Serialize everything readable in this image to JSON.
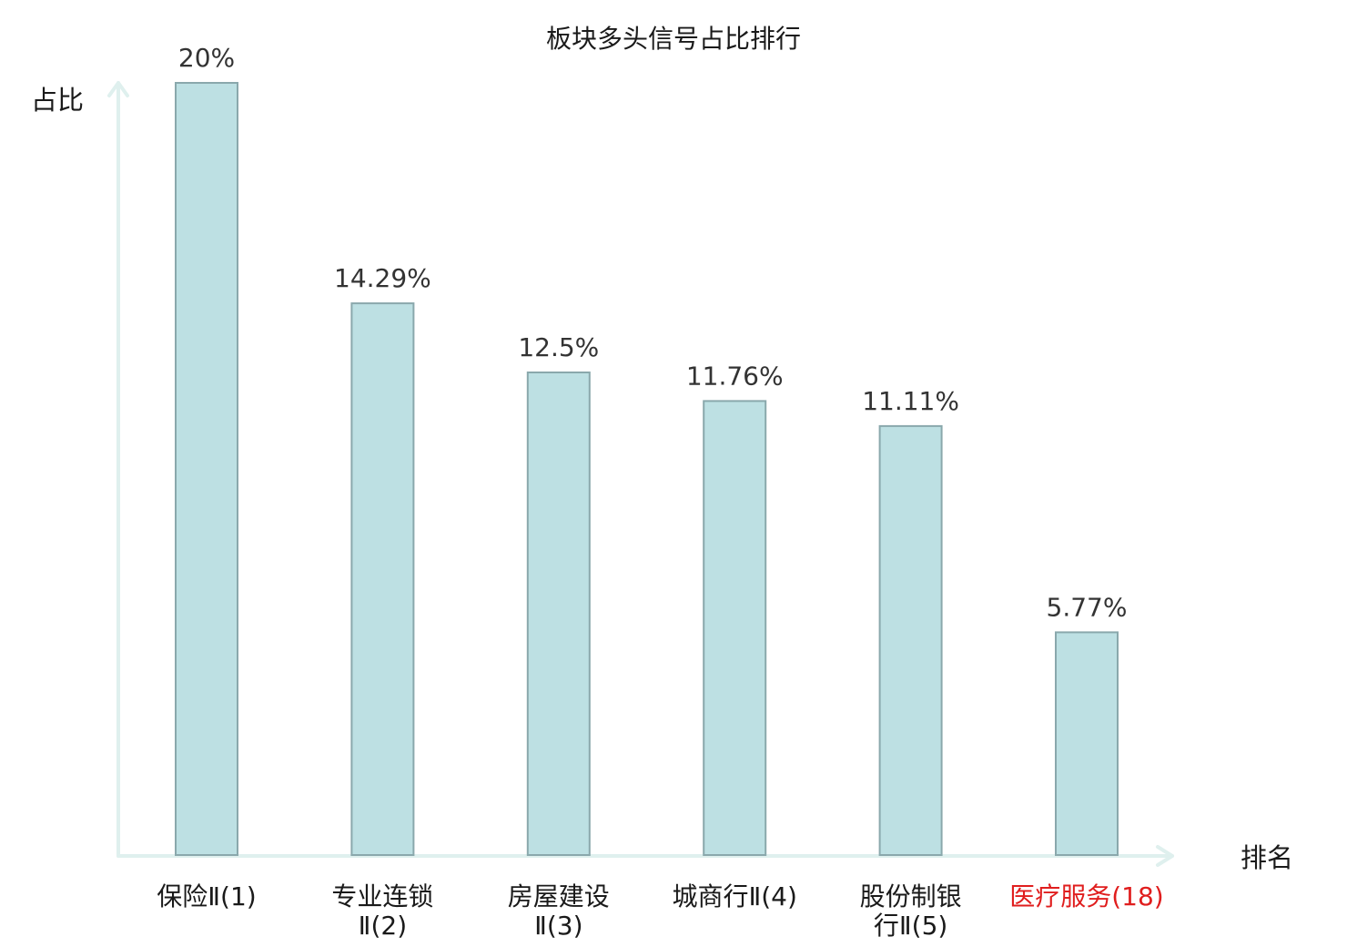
{
  "chart_data": {
    "type": "bar",
    "title": "板块多头信号占比排行",
    "ylabel": "占比",
    "xlabel": "排名",
    "ylim": [
      0,
      20
    ],
    "grid": false,
    "legend": "none",
    "categories": [
      [
        "保险Ⅱ(1)"
      ],
      [
        "专业连锁",
        "Ⅱ(2)"
      ],
      [
        "房屋建设",
        "Ⅱ(3)"
      ],
      [
        "城商行Ⅱ(4)"
      ],
      [
        "股份制银",
        "行Ⅱ(5)"
      ],
      [
        "医疗服务(18)"
      ]
    ],
    "values": [
      20,
      14.29,
      12.5,
      11.76,
      11.11,
      5.77
    ],
    "value_labels": [
      "20%",
      "14.29%",
      "12.5%",
      "11.76%",
      "11.11%",
      "5.77%"
    ],
    "highlight_index": 5,
    "colors": {
      "bar_fill": "#bde0e3",
      "bar_stroke": "#8aa8ac",
      "axis": "#dff0ee",
      "highlight_text": "#e01e1e"
    }
  }
}
